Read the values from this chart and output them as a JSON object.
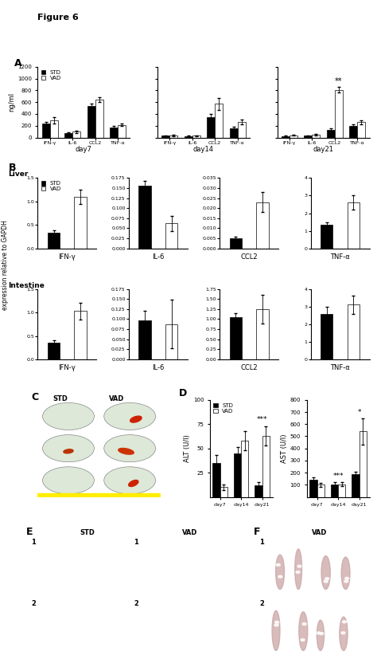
{
  "fig_label": "Figure 6",
  "panel_A": {
    "ylabel": "ng/ml",
    "ylim": [
      0,
      1200
    ],
    "yticks": [
      0,
      200,
      400,
      600,
      800,
      1000,
      1200
    ],
    "groups": [
      "IFN-γ",
      "IL-6",
      "CCL2",
      "TNF-α"
    ],
    "day7": {
      "STD": [
        240,
        80,
        540,
        170
      ],
      "VAD": [
        290,
        100,
        640,
        215
      ],
      "STD_err": [
        30,
        15,
        40,
        20
      ],
      "VAD_err": [
        50,
        20,
        40,
        20
      ]
    },
    "day14": {
      "STD": [
        30,
        25,
        340,
        155
      ],
      "VAD": [
        35,
        30,
        570,
        270
      ],
      "STD_err": [
        10,
        8,
        60,
        25
      ],
      "VAD_err": [
        10,
        10,
        100,
        40
      ]
    },
    "day21": {
      "STD": [
        25,
        30,
        130,
        200
      ],
      "VAD": [
        40,
        45,
        810,
        260
      ],
      "STD_err": [
        8,
        10,
        30,
        25
      ],
      "VAD_err": [
        10,
        12,
        50,
        30
      ],
      "significance": {
        "CCL2": "**"
      }
    }
  },
  "panel_B_liver": {
    "title": "Liver",
    "subpanels": [
      {
        "cytokine": "IFN-γ",
        "ylim": [
          0,
          1.5
        ],
        "yticks": [
          0,
          0.5,
          1.0,
          1.5
        ],
        "STD": 0.33,
        "VAD": 1.1,
        "STD_err": 0.06,
        "VAD_err": 0.15
      },
      {
        "cytokine": "IL-6",
        "ylim": [
          0,
          0.175
        ],
        "yticks": [
          0,
          0.025,
          0.05,
          0.075,
          0.1,
          0.125,
          0.15,
          0.175
        ],
        "STD": 0.155,
        "VAD": 0.062,
        "STD_err": 0.012,
        "VAD_err": 0.018
      },
      {
        "cytokine": "CCL2",
        "ylim": [
          0,
          0.035
        ],
        "yticks": [
          0,
          0.005,
          0.01,
          0.015,
          0.02,
          0.025,
          0.03,
          0.035
        ],
        "STD": 0.005,
        "VAD": 0.023,
        "STD_err": 0.001,
        "VAD_err": 0.005
      },
      {
        "cytokine": "TNF-α",
        "ylim": [
          0,
          4
        ],
        "yticks": [
          0,
          1,
          2,
          3,
          4
        ],
        "STD": 1.35,
        "VAD": 2.6,
        "STD_err": 0.15,
        "VAD_err": 0.4
      }
    ]
  },
  "panel_B_intestine": {
    "title": "Intestine",
    "subpanels": [
      {
        "cytokine": "IFN-γ",
        "ylim": [
          0,
          1.5
        ],
        "yticks": [
          0,
          0.5,
          1.0,
          1.5
        ],
        "STD": 0.35,
        "VAD": 1.03,
        "STD_err": 0.05,
        "VAD_err": 0.18
      },
      {
        "cytokine": "IL-6",
        "ylim": [
          0,
          0.175
        ],
        "yticks": [
          0,
          0.025,
          0.05,
          0.075,
          0.1,
          0.125,
          0.15,
          0.175
        ],
        "STD": 0.096,
        "VAD": 0.088,
        "STD_err": 0.025,
        "VAD_err": 0.06
      },
      {
        "cytokine": "CCL2",
        "ylim": [
          0,
          1.75
        ],
        "yticks": [
          0,
          0.25,
          0.5,
          0.75,
          1.0,
          1.25,
          1.5,
          1.75
        ],
        "STD": 1.05,
        "VAD": 1.25,
        "STD_err": 0.1,
        "VAD_err": 0.35
      },
      {
        "cytokine": "TNF-α",
        "ylim": [
          0,
          4
        ],
        "yticks": [
          0,
          1,
          2,
          3,
          4
        ],
        "STD": 2.6,
        "VAD": 3.1,
        "STD_err": 0.4,
        "VAD_err": 0.5
      }
    ]
  },
  "panel_D_ALT": {
    "ylabel": "ALT (U/l)",
    "ylim": [
      0,
      100
    ],
    "yticks": [
      25,
      50,
      75,
      100
    ],
    "groups": [
      "day7",
      "day14",
      "day21"
    ],
    "STD": [
      35,
      45,
      12
    ],
    "VAD": [
      10,
      58,
      63
    ],
    "STD_err": [
      8,
      6,
      3
    ],
    "VAD_err": [
      3,
      10,
      10
    ],
    "significance": {
      "day21": "***"
    }
  },
  "panel_D_AST": {
    "ylabel": "AST (U/l)",
    "ylim": [
      0,
      800
    ],
    "yticks": [
      100,
      200,
      300,
      400,
      500,
      600,
      700,
      800
    ],
    "groups": [
      "day7",
      "day14",
      "day21"
    ],
    "STD": [
      140,
      105,
      185
    ],
    "VAD": [
      100,
      105,
      540
    ],
    "STD_err": [
      20,
      15,
      25
    ],
    "VAD_err": [
      15,
      15,
      110
    ],
    "significance": {
      "day14": "***",
      "day21": "*"
    }
  },
  "STD_color": "black",
  "VAD_color": "white",
  "bar_edgecolor": "black",
  "bar_width": 0.35,
  "font_size": 6,
  "tick_font_size": 5.5,
  "panel_E_liver_STD_color": "#d4908c",
  "panel_E_liver_VAD_color": "#b06060",
  "panel_F_intestine_color": "#e8d0d0"
}
